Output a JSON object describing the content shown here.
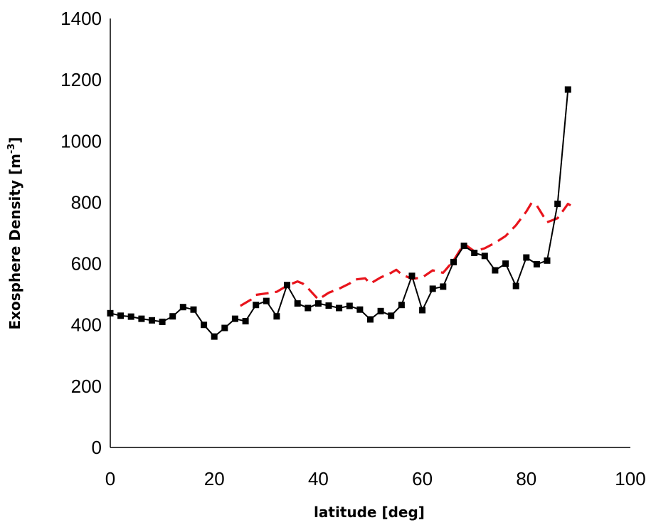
{
  "chart_data": {
    "type": "line",
    "xlabel": "latitude [deg]",
    "ylabel": "Exosphere Density [m",
    "ylabel_superscript": "-3",
    "ylabel_suffix": "]",
    "xlim": [
      0,
      100
    ],
    "ylim": [
      0,
      1400
    ],
    "x_ticks": [
      0,
      20,
      40,
      60,
      80,
      100
    ],
    "y_ticks": [
      0,
      200,
      400,
      600,
      800,
      1000,
      1200,
      1400
    ],
    "grid": false,
    "legend": "none",
    "series": [
      {
        "style": "solid-square-markers",
        "color": "#000000",
        "x": [
          0,
          2,
          4,
          6,
          8,
          10,
          12,
          14,
          16,
          18,
          20,
          22,
          24,
          26,
          28,
          30,
          32,
          34,
          36,
          38,
          40,
          42,
          44,
          46,
          48,
          50,
          52,
          54,
          56,
          58,
          60,
          62,
          64,
          66,
          68,
          70,
          72,
          74,
          76,
          78,
          80,
          82,
          84,
          86,
          88
        ],
        "y": [
          438,
          430,
          427,
          420,
          415,
          410,
          428,
          458,
          450,
          400,
          362,
          390,
          420,
          412,
          465,
          478,
          428,
          530,
          470,
          455,
          470,
          463,
          455,
          462,
          450,
          418,
          445,
          430,
          465,
          560,
          448,
          518,
          525,
          605,
          658,
          635,
          625,
          578,
          600,
          527,
          620,
          598,
          610,
          795,
          1168
        ]
      },
      {
        "style": "dashed",
        "color": "#e8141c",
        "x": [
          25,
          27,
          28,
          30,
          32,
          34,
          36,
          37,
          38,
          40,
          42,
          44,
          46,
          47,
          49,
          50,
          52,
          54,
          55,
          56,
          58,
          60,
          62,
          64,
          66,
          68,
          70,
          72,
          74,
          76,
          78,
          80,
          81,
          82,
          84,
          86,
          88,
          89
        ],
        "y": [
          462,
          482,
          498,
          503,
          508,
          528,
          542,
          535,
          520,
          483,
          505,
          518,
          535,
          548,
          552,
          535,
          555,
          570,
          580,
          565,
          550,
          555,
          578,
          570,
          610,
          665,
          640,
          650,
          668,
          690,
          725,
          770,
          798,
          790,
          735,
          748,
          795,
          785
        ]
      }
    ]
  }
}
